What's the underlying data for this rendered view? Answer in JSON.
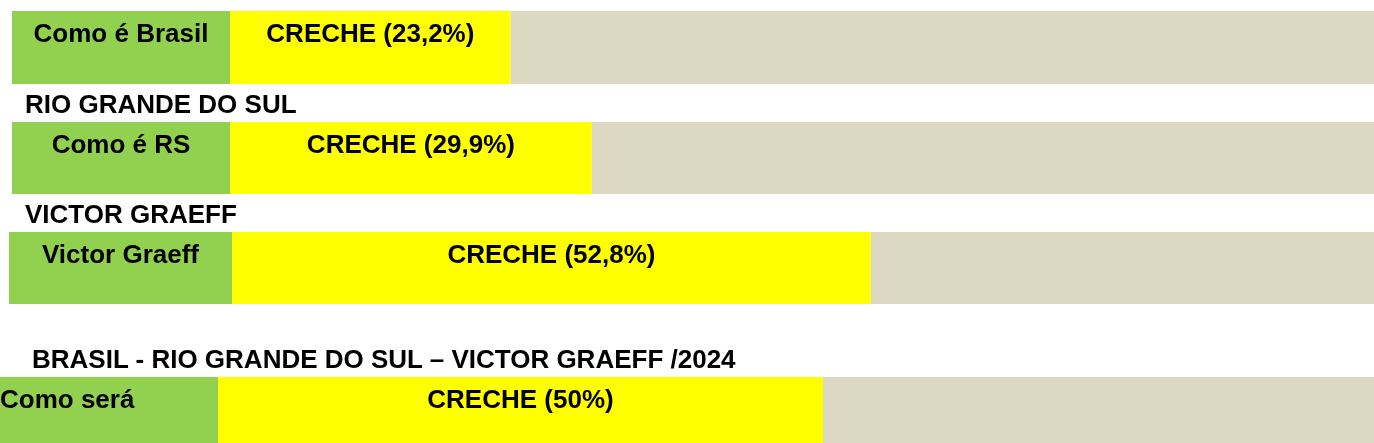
{
  "chart_data": [
    {
      "type": "bar",
      "orientation": "horizontal",
      "categories": [
        "Como é Brasil"
      ],
      "values": [
        23.2
      ],
      "color": "#ffff00",
      "value_labels": [
        "CRECHE (23,2%)"
      ],
      "tick_labels": "y"
    },
    {
      "type": "bar",
      "orientation": "horizontal",
      "title": "RIO GRANDE DO SUL",
      "categories": [
        "Como é RS"
      ],
      "values": [
        29.9
      ],
      "color": "#ffff00",
      "value_labels": [
        "CRECHE (29,9%)"
      ],
      "tick_labels": "y"
    },
    {
      "type": "bar",
      "orientation": "horizontal",
      "title": "VICTOR GRAEFF",
      "categories": [
        "Victor Graeff"
      ],
      "values": [
        52.8
      ],
      "color": "#ffff00",
      "value_labels": [
        "CRECHE (52,8%)"
      ],
      "tick_labels": "y"
    },
    {
      "type": "bar",
      "orientation": "horizontal",
      "title": "BRASIL - RIO GRANDE DO SUL – VICTOR GRAEFF /2024",
      "categories": [
        "Como será"
      ],
      "values": [
        50
      ],
      "color": "#ffff00",
      "value_labels": [
        "CRECHE (50%)"
      ],
      "tick_labels": "y"
    }
  ]
}
